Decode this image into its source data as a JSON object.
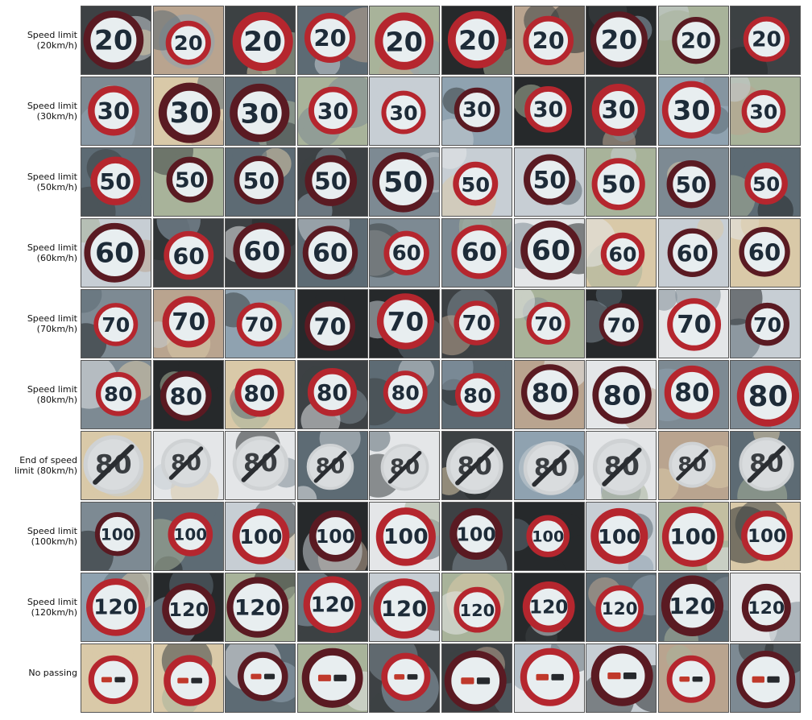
{
  "rows": [
    {
      "label": "Speed limit\n(20km/h)",
      "type": "speed",
      "text": "20"
    },
    {
      "label": "Speed limit\n(30km/h)",
      "type": "speed",
      "text": "30"
    },
    {
      "label": "Speed limit\n(50km/h)",
      "type": "speed",
      "text": "50"
    },
    {
      "label": "Speed limit\n(60km/h)",
      "type": "speed",
      "text": "60"
    },
    {
      "label": "Speed limit\n(70km/h)",
      "type": "speed",
      "text": "70"
    },
    {
      "label": "Speed limit\n(80km/h)",
      "type": "speed",
      "text": "80"
    },
    {
      "label": "End of speed\nlimit (80km/h)",
      "type": "end",
      "text": "80"
    },
    {
      "label": "Speed limit\n(100km/h)",
      "type": "speed",
      "text": "100"
    },
    {
      "label": "Speed limit\n(120km/h)",
      "type": "speed",
      "text": "120"
    },
    {
      "label": "No passing",
      "type": "nopass",
      "text": ""
    }
  ],
  "samples_per_row": 10,
  "colors": {
    "ring": "#b5262e",
    "ring_dark": "#5a1a22",
    "sign_fill": "#e8eef0",
    "digit": "#1d2b38",
    "end_ring": "#cfd2d4",
    "end_fill": "#d9dcde",
    "end_digit": "#3a3e42",
    "end_slash": "#2a2d31",
    "car_red": "#c0392b",
    "car_dark": "#26292d",
    "bg_tones": [
      "#7d8a93",
      "#c7ced4",
      "#3d4144",
      "#a8b39a",
      "#d9c9a8",
      "#5d6b74",
      "#e4e6e8",
      "#26292b",
      "#b9a48f",
      "#8fa2b0"
    ]
  }
}
